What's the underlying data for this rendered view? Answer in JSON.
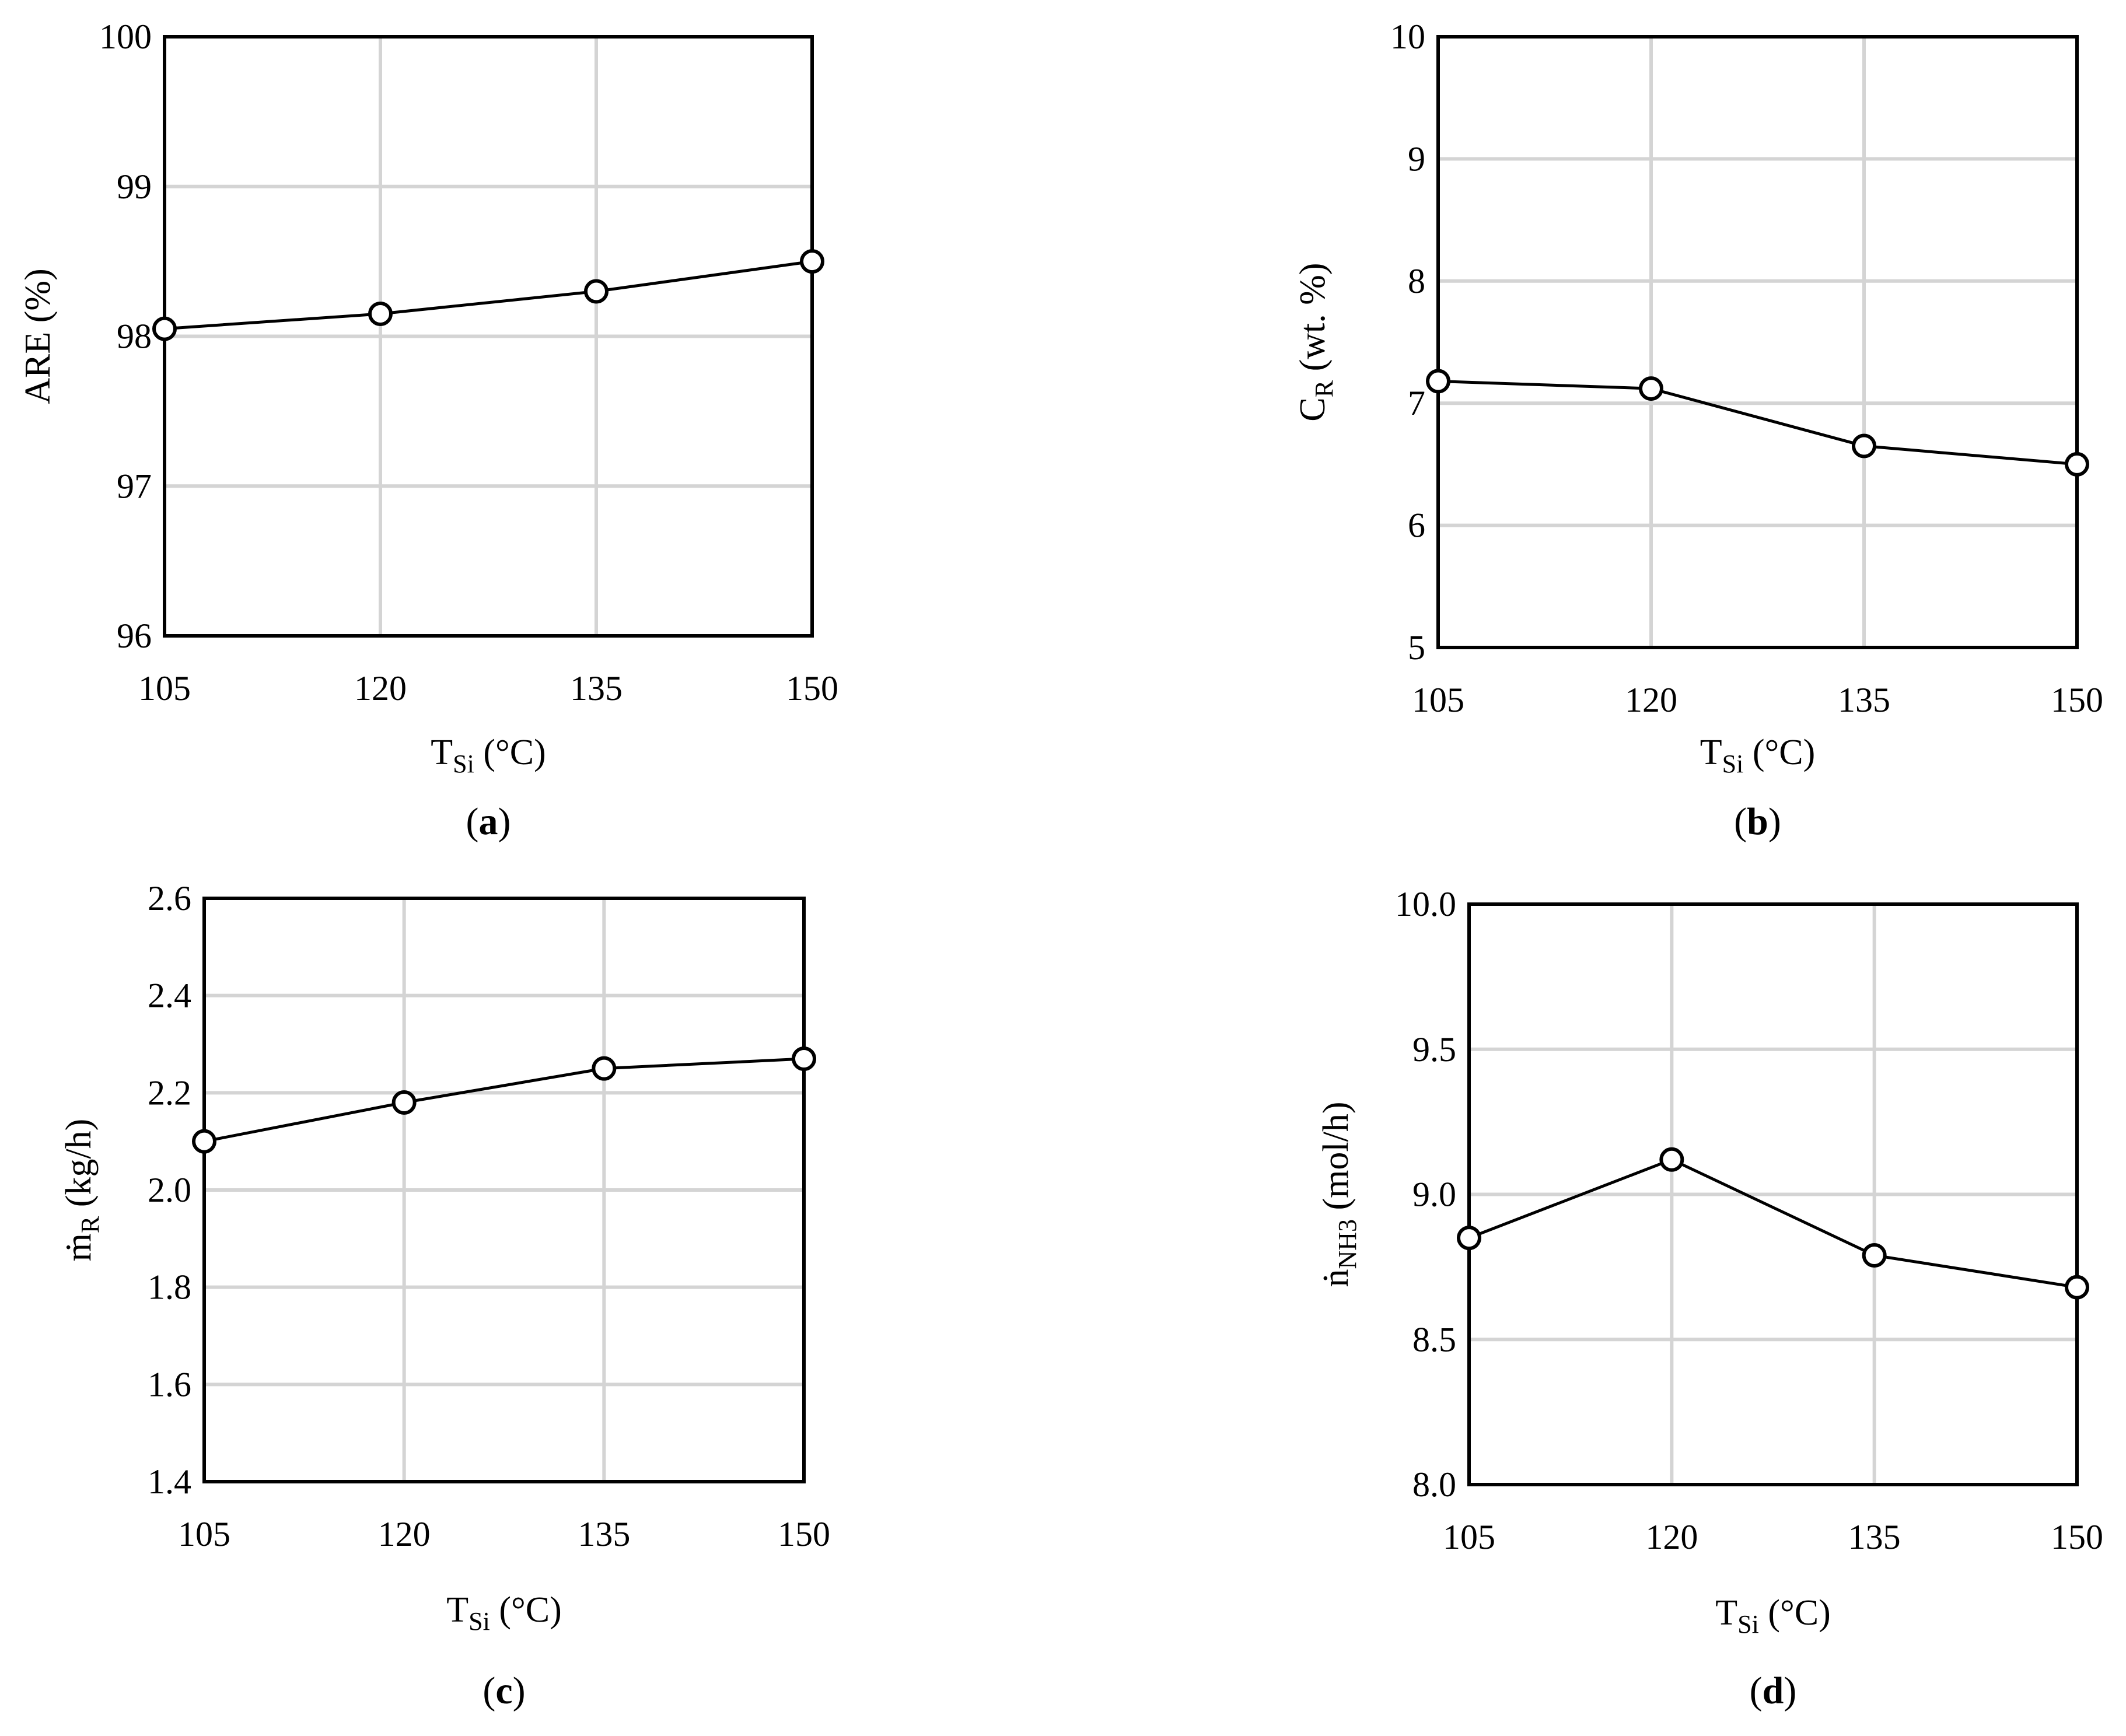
{
  "chart_data": [
    {
      "id": "a",
      "type": "line",
      "panel_label": "a",
      "x": [
        105,
        120,
        135,
        150
      ],
      "series": [
        {
          "name": "ARE",
          "values": [
            98.05,
            98.15,
            98.3,
            98.5
          ]
        }
      ],
      "xlabel": {
        "main": "T",
        "sub": "Si",
        "unit": " (°C)"
      },
      "ylabel": {
        "main": "ARE (%)",
        "sub": "",
        "unit": ""
      },
      "xlim": [
        105,
        150
      ],
      "ylim": [
        96,
        100
      ],
      "xticks": [
        105,
        120,
        135,
        150
      ],
      "yticks": [
        96,
        97,
        98,
        99,
        100
      ],
      "ytick_labels": [
        "96",
        "97",
        "98",
        "99",
        "100"
      ],
      "grid": true
    },
    {
      "id": "b",
      "type": "line",
      "panel_label": "b",
      "x": [
        105,
        120,
        135,
        150
      ],
      "series": [
        {
          "name": "CR",
          "values": [
            7.18,
            7.12,
            6.65,
            6.5
          ]
        }
      ],
      "xlabel": {
        "main": "T",
        "sub": "Si",
        "unit": " (°C)"
      },
      "ylabel": {
        "main": "C",
        "sub": "R",
        "unit": " (wt. %)"
      },
      "xlim": [
        105,
        150
      ],
      "ylim": [
        5,
        10
      ],
      "xticks": [
        105,
        120,
        135,
        150
      ],
      "yticks": [
        5,
        6,
        7,
        8,
        9,
        10
      ],
      "ytick_labels": [
        "5",
        "6",
        "7",
        "8",
        "9",
        "10"
      ],
      "grid": true
    },
    {
      "id": "c",
      "type": "line",
      "panel_label": "c",
      "x": [
        105,
        120,
        135,
        150
      ],
      "series": [
        {
          "name": "mR",
          "values": [
            2.1,
            2.18,
            2.25,
            2.27
          ]
        }
      ],
      "xlabel": {
        "main": "T",
        "sub": "Si",
        "unit": " (°C)"
      },
      "ylabel": {
        "main": "ṁ",
        "sub": "R",
        "unit": " (kg/h)"
      },
      "xlim": [
        105,
        150
      ],
      "ylim": [
        1.4,
        2.6
      ],
      "xticks": [
        105,
        120,
        135,
        150
      ],
      "yticks": [
        1.4,
        1.6,
        1.8,
        2.0,
        2.2,
        2.4,
        2.6
      ],
      "ytick_labels": [
        "1.4",
        "1.6",
        "1.8",
        "2.0",
        "2.2",
        "2.4",
        "2.6"
      ],
      "grid": true
    },
    {
      "id": "d",
      "type": "line",
      "panel_label": "d",
      "x": [
        105,
        120,
        135,
        150
      ],
      "series": [
        {
          "name": "nNH3",
          "values": [
            8.85,
            9.12,
            8.79,
            8.68
          ]
        }
      ],
      "xlabel": {
        "main": "T",
        "sub": "Si",
        "unit": " (°C)"
      },
      "ylabel": {
        "main": "ṅ",
        "sub": "NH3",
        "unit": " (mol/h)"
      },
      "xlim": [
        105,
        150
      ],
      "ylim": [
        8.0,
        10.0
      ],
      "xticks": [
        105,
        120,
        135,
        150
      ],
      "yticks": [
        8.0,
        8.5,
        9.0,
        9.5,
        10.0
      ],
      "ytick_labels": [
        "8.0",
        "8.5",
        "9.0",
        "9.5",
        "10.0"
      ],
      "grid": true
    }
  ]
}
